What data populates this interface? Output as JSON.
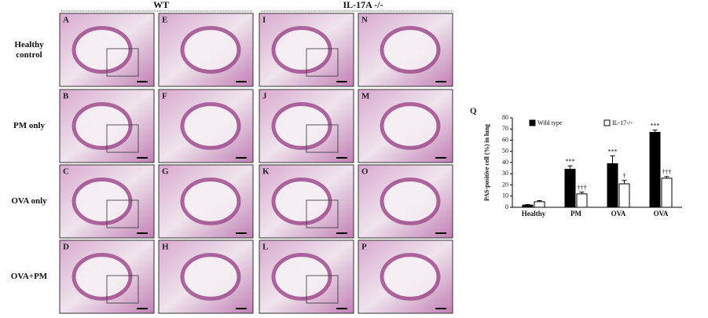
{
  "figure": {
    "groups": [
      "WT",
      "IL-17A -/-"
    ],
    "rows": [
      "Healthy control",
      "PM only",
      "OVA only",
      "OVA+PM"
    ],
    "panels": [
      [
        "A",
        "E",
        "I",
        "N"
      ],
      [
        "B",
        "F",
        "J",
        "M"
      ],
      [
        "C",
        "G",
        "K",
        "O"
      ],
      [
        "D",
        "H",
        "L",
        "P"
      ]
    ]
  },
  "chart_data": {
    "type": "bar",
    "panel_label": "Q",
    "ylabel": "PAS-positive cell (%) in lung",
    "categories": [
      "Healthy",
      "PM",
      "OVA",
      "OVA"
    ],
    "series": [
      {
        "name": "Wild type",
        "color": "#000000",
        "values": [
          2,
          34,
          39,
          67
        ],
        "errors": [
          0.5,
          3,
          7,
          2
        ],
        "markers": [
          null,
          "***",
          "***",
          "***"
        ]
      },
      {
        "name": "IL-17-/-",
        "color": "#ffffff",
        "values": [
          5,
          12,
          21,
          26
        ],
        "errors": [
          1,
          1.5,
          3,
          1.5
        ],
        "markers": [
          null,
          "†††",
          "†",
          "†††"
        ]
      }
    ],
    "ylim": [
      0,
      80
    ],
    "yticks": [
      0,
      10,
      20,
      30,
      40,
      50,
      60,
      70,
      80
    ]
  }
}
